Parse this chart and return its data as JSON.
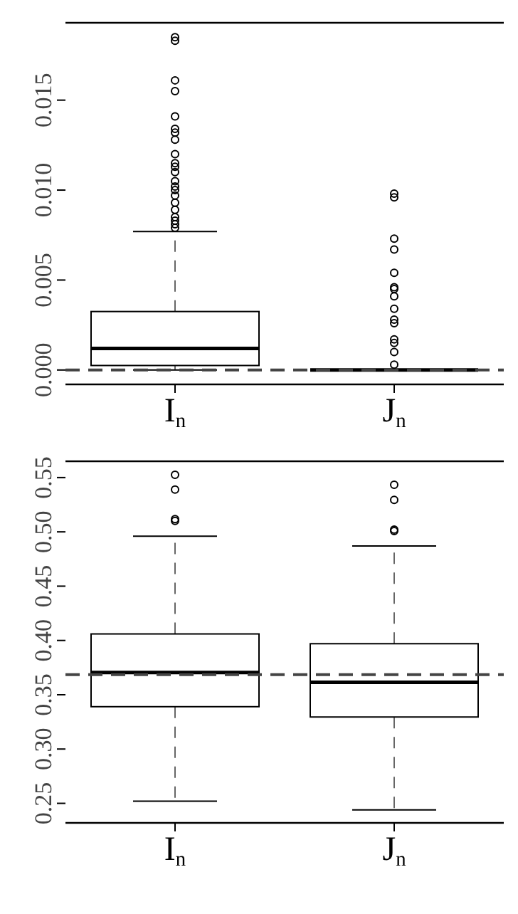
{
  "chart_data": [
    {
      "type": "box",
      "categories": [
        "I$_{n}$",
        "J$_{n}$"
      ],
      "ylim": [
        -0.0008,
        0.0193
      ],
      "yticks": [
        {
          "value": 0,
          "label": "0.000"
        },
        {
          "value": 0.005,
          "label": "0.005"
        },
        {
          "value": 0.01,
          "label": "0.010"
        },
        {
          "value": 0.015,
          "label": "0.015"
        }
      ],
      "boxes": [
        {
          "low": 0,
          "q1": 0.00025,
          "median": 0.0012,
          "q3": 0.00325,
          "high": 0.0077,
          "outliers": [
            0.0079,
            0.0081,
            0.0083,
            0.0085,
            0.0089,
            0.0093,
            0.0097,
            0.01,
            0.0102,
            0.0105,
            0.011,
            0.0113,
            0.0115,
            0.012,
            0.0128,
            0.0132,
            0.0134,
            0.0141,
            0.0155,
            0.0161,
            0.0183,
            0.0185
          ]
        },
        {
          "low": 0,
          "q1": 0,
          "median": 0,
          "q3": 0,
          "high": 0,
          "outliers": [
            0.0003,
            0.001,
            0.0015,
            0.0017,
            0.0026,
            0.0028,
            0.0034,
            0.0041,
            0.0045,
            0.0046,
            0.0054,
            0.0067,
            0.0073,
            0.0096,
            0.0098
          ]
        }
      ],
      "ref_lines": [
        {
          "axis": "y",
          "value": 0,
          "line_style": "dashed"
        }
      ],
      "grid": false,
      "legend": false
    },
    {
      "type": "box",
      "categories": [
        "I$_{n}$",
        "J$_{n}$"
      ],
      "ylim": [
        0.232,
        0.565
      ],
      "yticks": [
        0.25,
        {
          "value": 0.3,
          "label": "0.30"
        },
        0.35,
        {
          "value": 0.4,
          "label": "0.40"
        },
        0.45,
        {
          "value": 0.5,
          "label": "0.50"
        },
        0.55
      ],
      "boxes": [
        {
          "low": 0.252,
          "q1": 0.339,
          "median": 0.3705,
          "q3": 0.406,
          "high": 0.496,
          "outliers": [
            0.5101,
            0.5118,
            0.539,
            0.5525
          ]
        },
        {
          "low": 0.244,
          "q1": 0.3295,
          "median": 0.3615,
          "q3": 0.397,
          "high": 0.487,
          "outliers": [
            0.5008,
            0.502,
            0.5295,
            0.5433
          ]
        }
      ],
      "ref_lines": [
        {
          "axis": "y",
          "value": 0.3685,
          "line_style": "dashed"
        }
      ],
      "grid": false,
      "legend": false
    }
  ]
}
